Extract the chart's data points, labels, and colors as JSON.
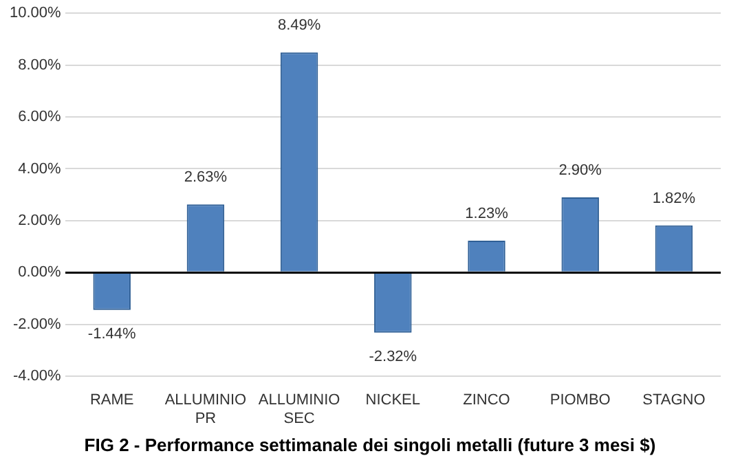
{
  "chart_data": {
    "type": "bar",
    "title": "FIG 2 - Performance settimanale dei singoli metalli (future 3 mesi $)",
    "categories": [
      "RAME",
      "ALLUMINIO PR",
      "ALLUMINIO SEC",
      "NICKEL",
      "ZINCO",
      "PIOMBO",
      "STAGNO"
    ],
    "values": [
      -1.44,
      2.63,
      8.49,
      -2.32,
      1.23,
      2.9,
      1.82
    ],
    "value_labels": [
      "-1.44%",
      "2.63%",
      "8.49%",
      "-2.32%",
      "1.23%",
      "2.90%",
      "1.82%"
    ],
    "color": "#4f81bd",
    "ylim": [
      -4,
      10
    ],
    "yticks": [
      {
        "value": -4,
        "label": "-4.00%"
      },
      {
        "value": -2,
        "label": "-2.00%"
      },
      {
        "value": 0,
        "label": "0.00%"
      },
      {
        "value": 2,
        "label": "2.00%"
      },
      {
        "value": 4,
        "label": "4.00%"
      },
      {
        "value": 6,
        "label": "6.00%"
      },
      {
        "value": 8,
        "label": "8.00%"
      },
      {
        "value": 10,
        "label": "10.00%"
      }
    ],
    "grid": "y",
    "legend": false
  }
}
